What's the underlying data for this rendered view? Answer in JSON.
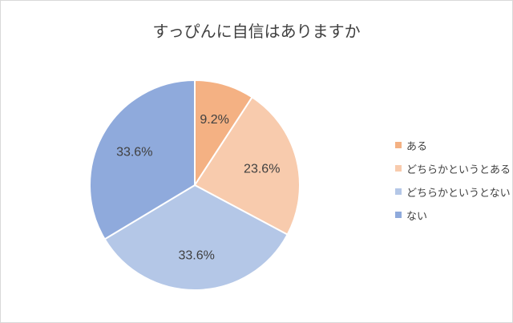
{
  "chart_data": {
    "type": "pie",
    "title": "すっぴんに自信はありますか",
    "categories": [
      "ある",
      "どちらかというとある",
      "どちらかというとない",
      "ない"
    ],
    "values": [
      9.2,
      23.6,
      33.6,
      33.6
    ],
    "labels": [
      "9.2%",
      "23.6%",
      "33.6%",
      "33.6%"
    ],
    "colors": [
      "#f4b183",
      "#f8cbad",
      "#b4c7e7",
      "#8faadc"
    ],
    "legend": "right"
  }
}
